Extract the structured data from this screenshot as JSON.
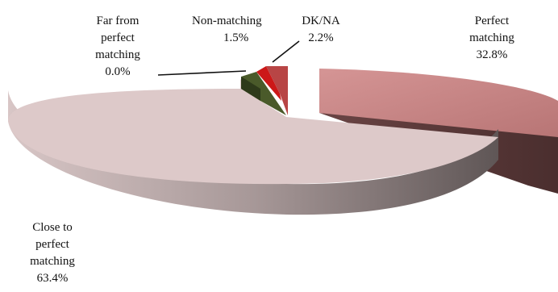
{
  "chart_data": {
    "type": "pie",
    "style": "3d-exploded",
    "slices": [
      {
        "label": "Perfect matching",
        "value": 32.8,
        "value_label": "32.8%",
        "color": "#c98585",
        "lines": [
          "Perfect",
          "matching",
          "32.8%"
        ]
      },
      {
        "label": "Close to perfect matching",
        "value": 63.4,
        "value_label": "63.4%",
        "color": "#dfcaca",
        "lines": [
          "Close to",
          "perfect",
          "matching",
          "63.4%"
        ]
      },
      {
        "label": "Far from perfect matching",
        "value": 0.0,
        "value_label": "0.0%",
        "color": "#4a5a2a",
        "lines": [
          "Far from",
          "perfect",
          "matching",
          "0.0%"
        ]
      },
      {
        "label": "Non-matching",
        "value": 1.5,
        "value_label": "1.5%",
        "color": "#cc1818",
        "lines": [
          "Non-matching",
          "1.5%"
        ]
      },
      {
        "label": "DK/NA",
        "value": 2.2,
        "value_label": "2.2%",
        "color": "#b84545",
        "lines": [
          "DK/NA",
          "2.2%"
        ]
      }
    ]
  }
}
